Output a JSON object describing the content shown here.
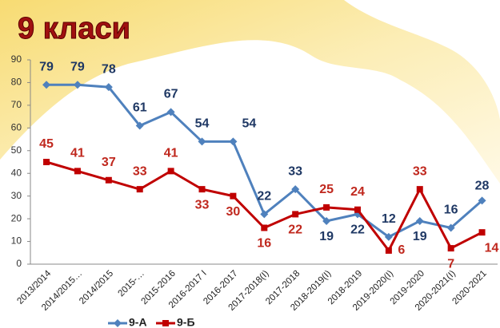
{
  "chart_data": {
    "type": "line",
    "title": "9 класи",
    "categories": [
      "2013/2014",
      "2014/2015…",
      "2014/2015",
      "2015-…",
      "2015-2016",
      "2016-2017 І",
      "2016-2017",
      "2017-2018(І)",
      "2017-2018",
      "2018-2019(І)",
      "2018-2019",
      "2019-2020(І)",
      "2019-2020",
      "2020-2021(І)",
      "2020-2021"
    ],
    "series": [
      {
        "name": "9-А",
        "color": "#4f81bd",
        "label_color": "#1f3864",
        "values": [
          79,
          79,
          78,
          61,
          67,
          54,
          54,
          22,
          33,
          19,
          22,
          12,
          19,
          16,
          28
        ]
      },
      {
        "name": "9-Б",
        "color": "#c00000",
        "label_color": "#c0281e",
        "values": [
          45,
          41,
          37,
          33,
          41,
          33,
          30,
          16,
          22,
          25,
          24,
          6,
          33,
          7,
          14
        ]
      }
    ],
    "ylim": [
      0,
      90
    ],
    "yticks": [
      0,
      10,
      20,
      30,
      40,
      50,
      60,
      70,
      80,
      90
    ],
    "grid": false
  }
}
